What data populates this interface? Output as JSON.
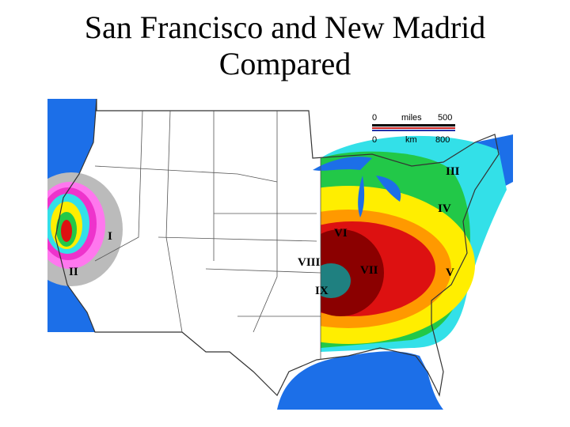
{
  "title": "San Francisco and New Madrid Compared",
  "map": {
    "scale": {
      "miles": {
        "start": "0",
        "unit": "miles",
        "end": "500"
      },
      "km": {
        "start": "0",
        "unit": "km",
        "end": "800"
      }
    },
    "intensity_labels": [
      "III",
      "IV",
      "VI",
      "I",
      "VIII",
      "VII",
      "V",
      "II",
      "IX"
    ]
  }
}
